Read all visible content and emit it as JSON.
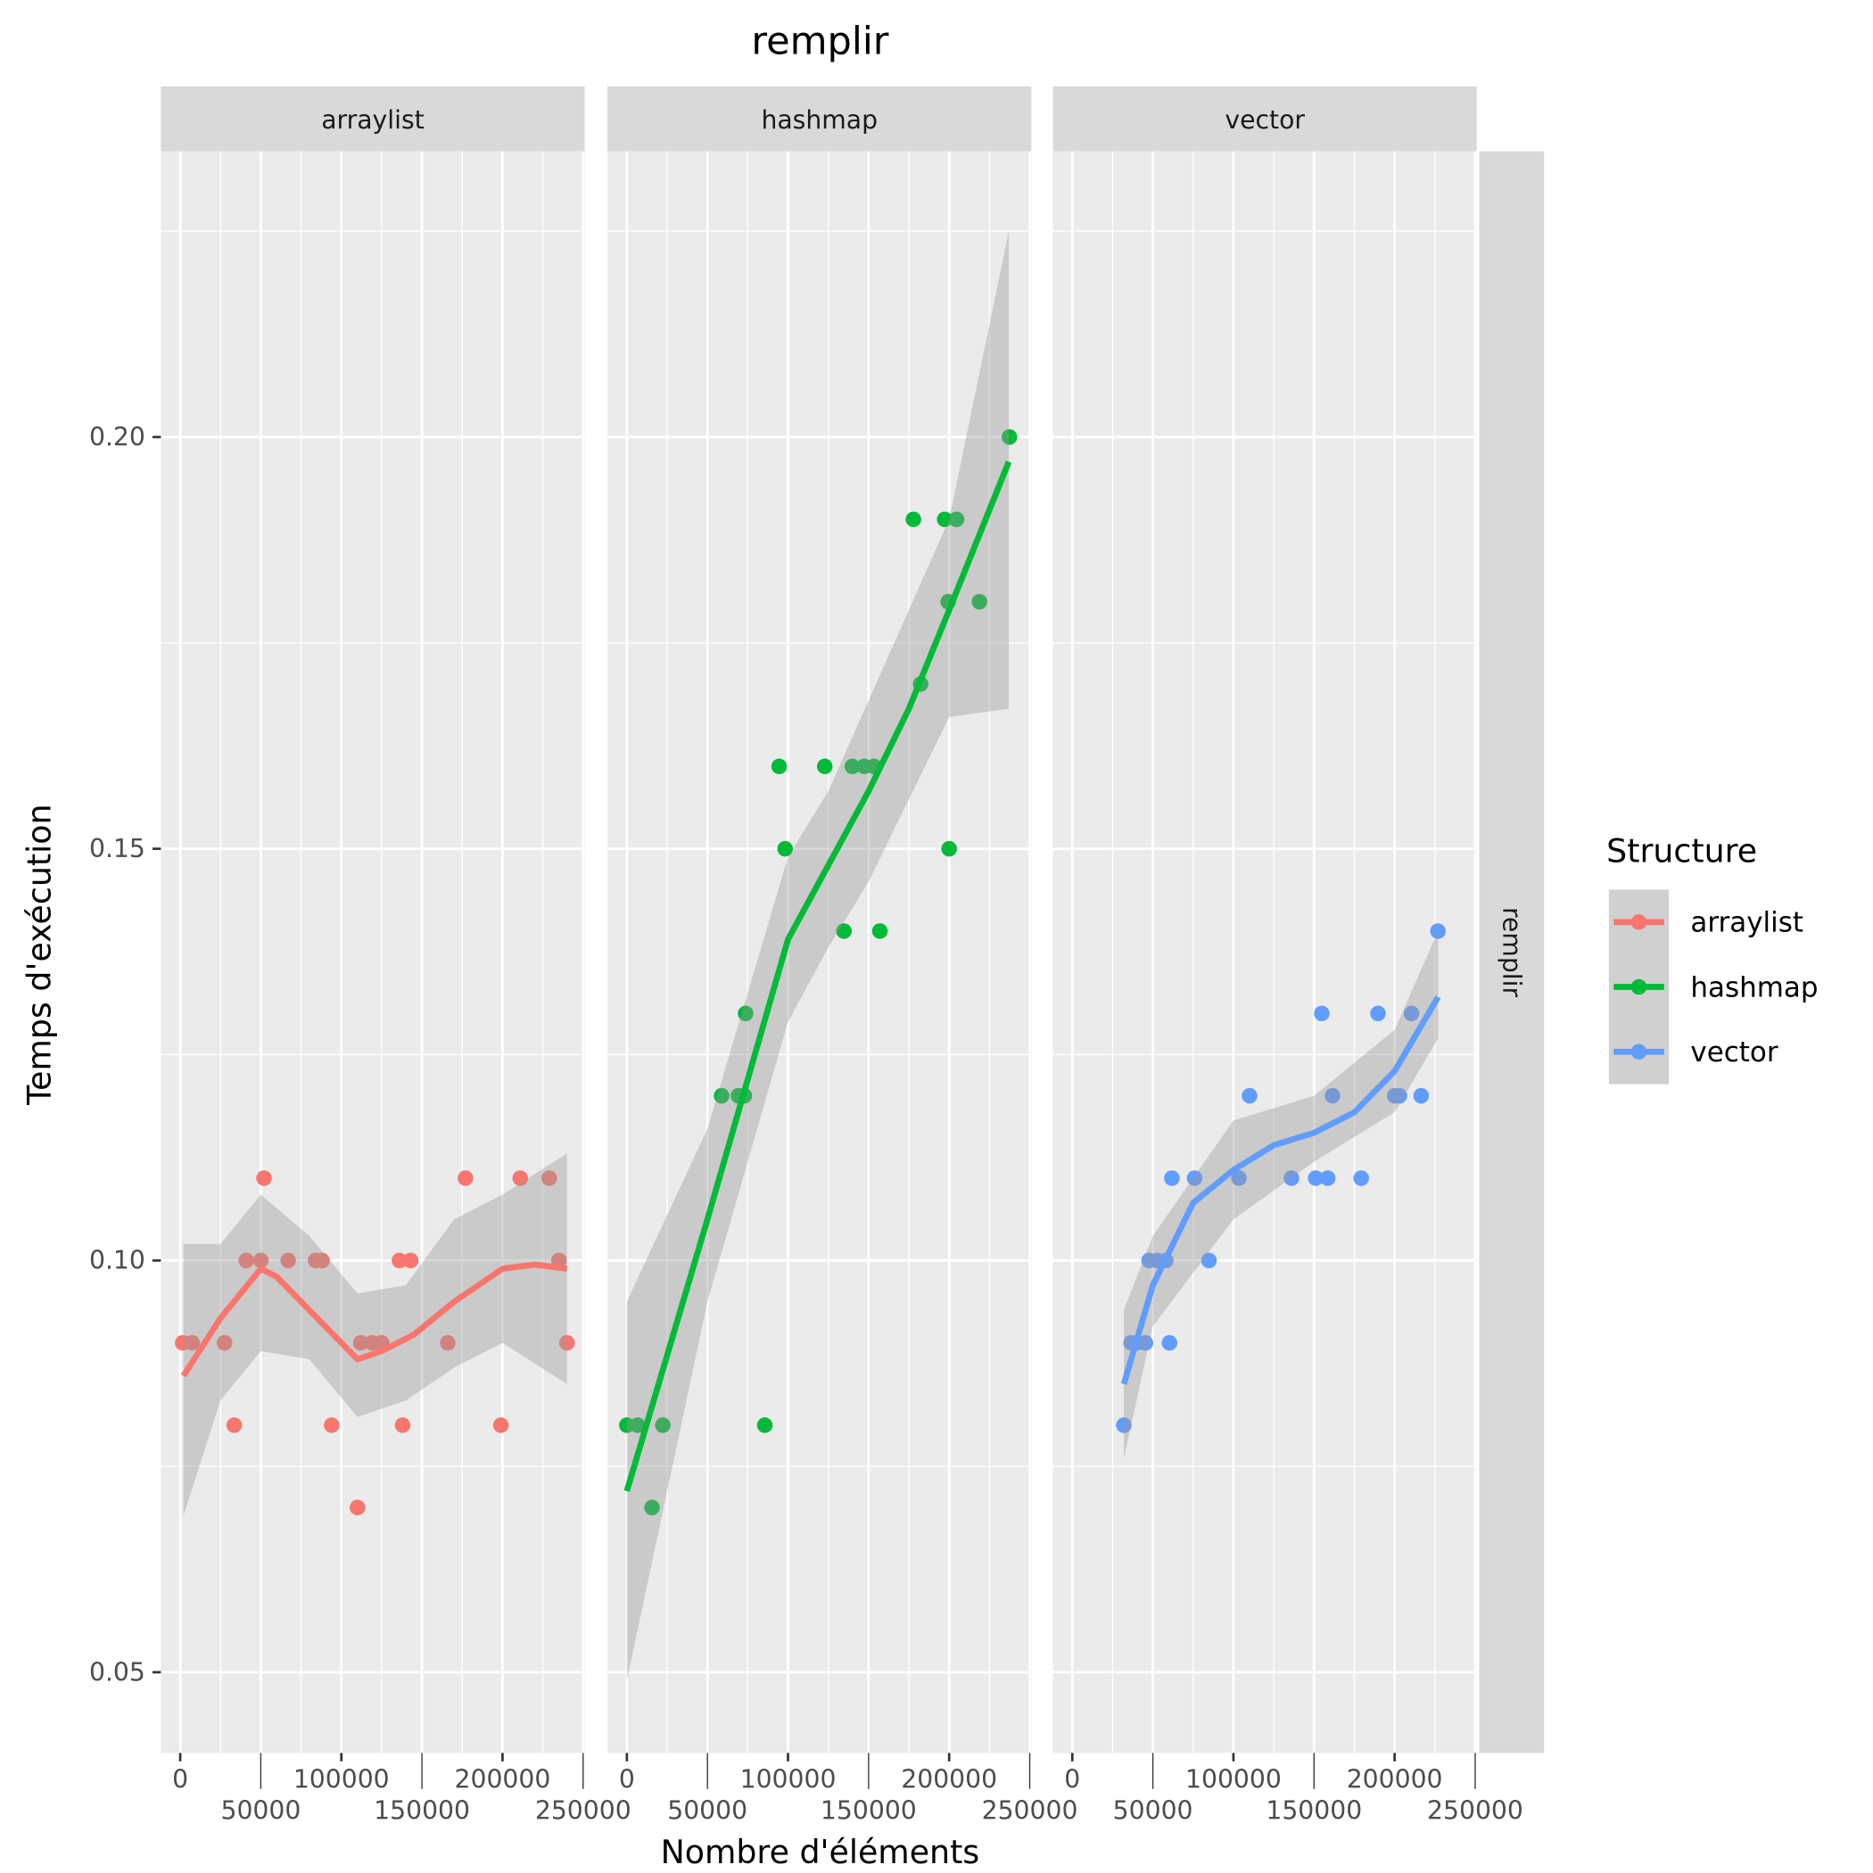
{
  "chart_data": {
    "type": "scatter",
    "title": "remplir",
    "xlabel": "Nombre d'éléments",
    "ylabel": "Temps d'exécution",
    "row_strip": "remplir",
    "xlim": [
      -12000,
      251000
    ],
    "ylim": [
      0.0402,
      0.2347
    ],
    "x_ticks": [
      0,
      50000,
      100000,
      150000,
      200000,
      250000
    ],
    "x_tick_labels": [
      "0",
      "50000",
      "100000",
      "150000",
      "200000",
      "250000"
    ],
    "y_ticks": [
      0.05,
      0.1,
      0.15,
      0.2
    ],
    "y_tick_labels": [
      "0.05",
      "0.10",
      "0.15",
      "0.20"
    ],
    "grid": true,
    "legend": {
      "title": "Structure",
      "placement": "right",
      "entries": [
        "arraylist",
        "hashmap",
        "vector"
      ]
    },
    "series": [
      {
        "name": "arraylist",
        "color": "#F8766D",
        "points": [
          [
            1500,
            0.09
          ],
          [
            7400,
            0.09
          ],
          [
            27500,
            0.09
          ],
          [
            33500,
            0.08
          ],
          [
            41000,
            0.1
          ],
          [
            50000,
            0.1
          ],
          [
            52000,
            0.11
          ],
          [
            67000,
            0.1
          ],
          [
            84000,
            0.1
          ],
          [
            88000,
            0.1
          ],
          [
            94000,
            0.08
          ],
          [
            110000,
            0.07
          ],
          [
            112000,
            0.09
          ],
          [
            119000,
            0.09
          ],
          [
            125000,
            0.09
          ],
          [
            136000,
            0.1
          ],
          [
            138000,
            0.08
          ],
          [
            143000,
            0.1
          ],
          [
            166000,
            0.09
          ],
          [
            177000,
            0.11
          ],
          [
            199000,
            0.08
          ],
          [
            211000,
            0.11
          ],
          [
            229000,
            0.11
          ],
          [
            235000,
            0.1
          ],
          [
            240000,
            0.09
          ]
        ],
        "smooth": [
          [
            2000,
            0.086
          ],
          [
            25000,
            0.093
          ],
          [
            50000,
            0.099
          ],
          [
            60000,
            0.098
          ],
          [
            75000,
            0.095
          ],
          [
            95000,
            0.091
          ],
          [
            110000,
            0.088
          ],
          [
            125000,
            0.089
          ],
          [
            145000,
            0.091
          ],
          [
            170000,
            0.095
          ],
          [
            200000,
            0.099
          ],
          [
            220000,
            0.0995
          ],
          [
            240000,
            0.099
          ]
        ],
        "ribbon": [
          [
            2000,
            0.069,
            0.102
          ],
          [
            25000,
            0.083,
            0.102
          ],
          [
            50000,
            0.089,
            0.108
          ],
          [
            80000,
            0.088,
            0.103
          ],
          [
            110000,
            0.081,
            0.096
          ],
          [
            140000,
            0.083,
            0.097
          ],
          [
            170000,
            0.087,
            0.105
          ],
          [
            200000,
            0.09,
            0.108
          ],
          [
            240000,
            0.085,
            0.113
          ]
        ]
      },
      {
        "name": "hashmap",
        "color": "#00BA38",
        "points": [
          [
            0,
            0.08
          ],
          [
            6700,
            0.08
          ],
          [
            15600,
            0.07
          ],
          [
            22300,
            0.08
          ],
          [
            58800,
            0.12
          ],
          [
            69200,
            0.12
          ],
          [
            72900,
            0.12
          ],
          [
            73700,
            0.13
          ],
          [
            85600,
            0.08
          ],
          [
            94500,
            0.16
          ],
          [
            98200,
            0.15
          ],
          [
            122800,
            0.16
          ],
          [
            134700,
            0.14
          ],
          [
            139900,
            0.16
          ],
          [
            147300,
            0.16
          ],
          [
            153300,
            0.16
          ],
          [
            157000,
            0.14
          ],
          [
            177800,
            0.19
          ],
          [
            182300,
            0.17
          ],
          [
            197200,
            0.19
          ],
          [
            200000,
            0.15
          ],
          [
            199400,
            0.18
          ],
          [
            204600,
            0.19
          ],
          [
            218800,
            0.18
          ],
          [
            237400,
            0.2
          ]
        ],
        "smooth": [
          [
            0,
            0.072
          ],
          [
            50000,
            0.105
          ],
          [
            75000,
            0.122
          ],
          [
            100000,
            0.139
          ],
          [
            125000,
            0.148
          ],
          [
            150000,
            0.157
          ],
          [
            175000,
            0.167
          ],
          [
            200000,
            0.179
          ],
          [
            237000,
            0.197
          ]
        ],
        "ribbon": [
          [
            0,
            0.049,
            0.095
          ],
          [
            50000,
            0.095,
            0.116
          ],
          [
            100000,
            0.129,
            0.149
          ],
          [
            125000,
            0.138,
            0.157
          ],
          [
            150000,
            0.146,
            0.168
          ],
          [
            200000,
            0.166,
            0.19
          ],
          [
            237000,
            0.167,
            0.225
          ]
        ]
      },
      {
        "name": "vector",
        "color": "#619CFF",
        "points": [
          [
            32000,
            0.08
          ],
          [
            36500,
            0.09
          ],
          [
            40000,
            0.09
          ],
          [
            45400,
            0.09
          ],
          [
            47600,
            0.1
          ],
          [
            52800,
            0.1
          ],
          [
            58000,
            0.1
          ],
          [
            60300,
            0.09
          ],
          [
            61800,
            0.11
          ],
          [
            75900,
            0.11
          ],
          [
            84800,
            0.1
          ],
          [
            103400,
            0.11
          ],
          [
            110000,
            0.12
          ],
          [
            136000,
            0.11
          ],
          [
            151000,
            0.11
          ],
          [
            154800,
            0.13
          ],
          [
            158500,
            0.11
          ],
          [
            161500,
            0.12
          ],
          [
            179300,
            0.11
          ],
          [
            189700,
            0.13
          ],
          [
            200100,
            0.12
          ],
          [
            203000,
            0.12
          ],
          [
            210500,
            0.13
          ],
          [
            216500,
            0.12
          ],
          [
            226900,
            0.14
          ]
        ],
        "smooth": [
          [
            32000,
            0.085
          ],
          [
            50000,
            0.097
          ],
          [
            75000,
            0.107
          ],
          [
            100000,
            0.111
          ],
          [
            125000,
            0.114
          ],
          [
            150000,
            0.1155
          ],
          [
            175000,
            0.118
          ],
          [
            200000,
            0.123
          ],
          [
            227000,
            0.132
          ]
        ],
        "ribbon": [
          [
            32000,
            0.076,
            0.094
          ],
          [
            50000,
            0.092,
            0.103
          ],
          [
            100000,
            0.105,
            0.117
          ],
          [
            150000,
            0.112,
            0.12
          ],
          [
            200000,
            0.118,
            0.128
          ],
          [
            227000,
            0.127,
            0.14
          ]
        ]
      }
    ]
  }
}
